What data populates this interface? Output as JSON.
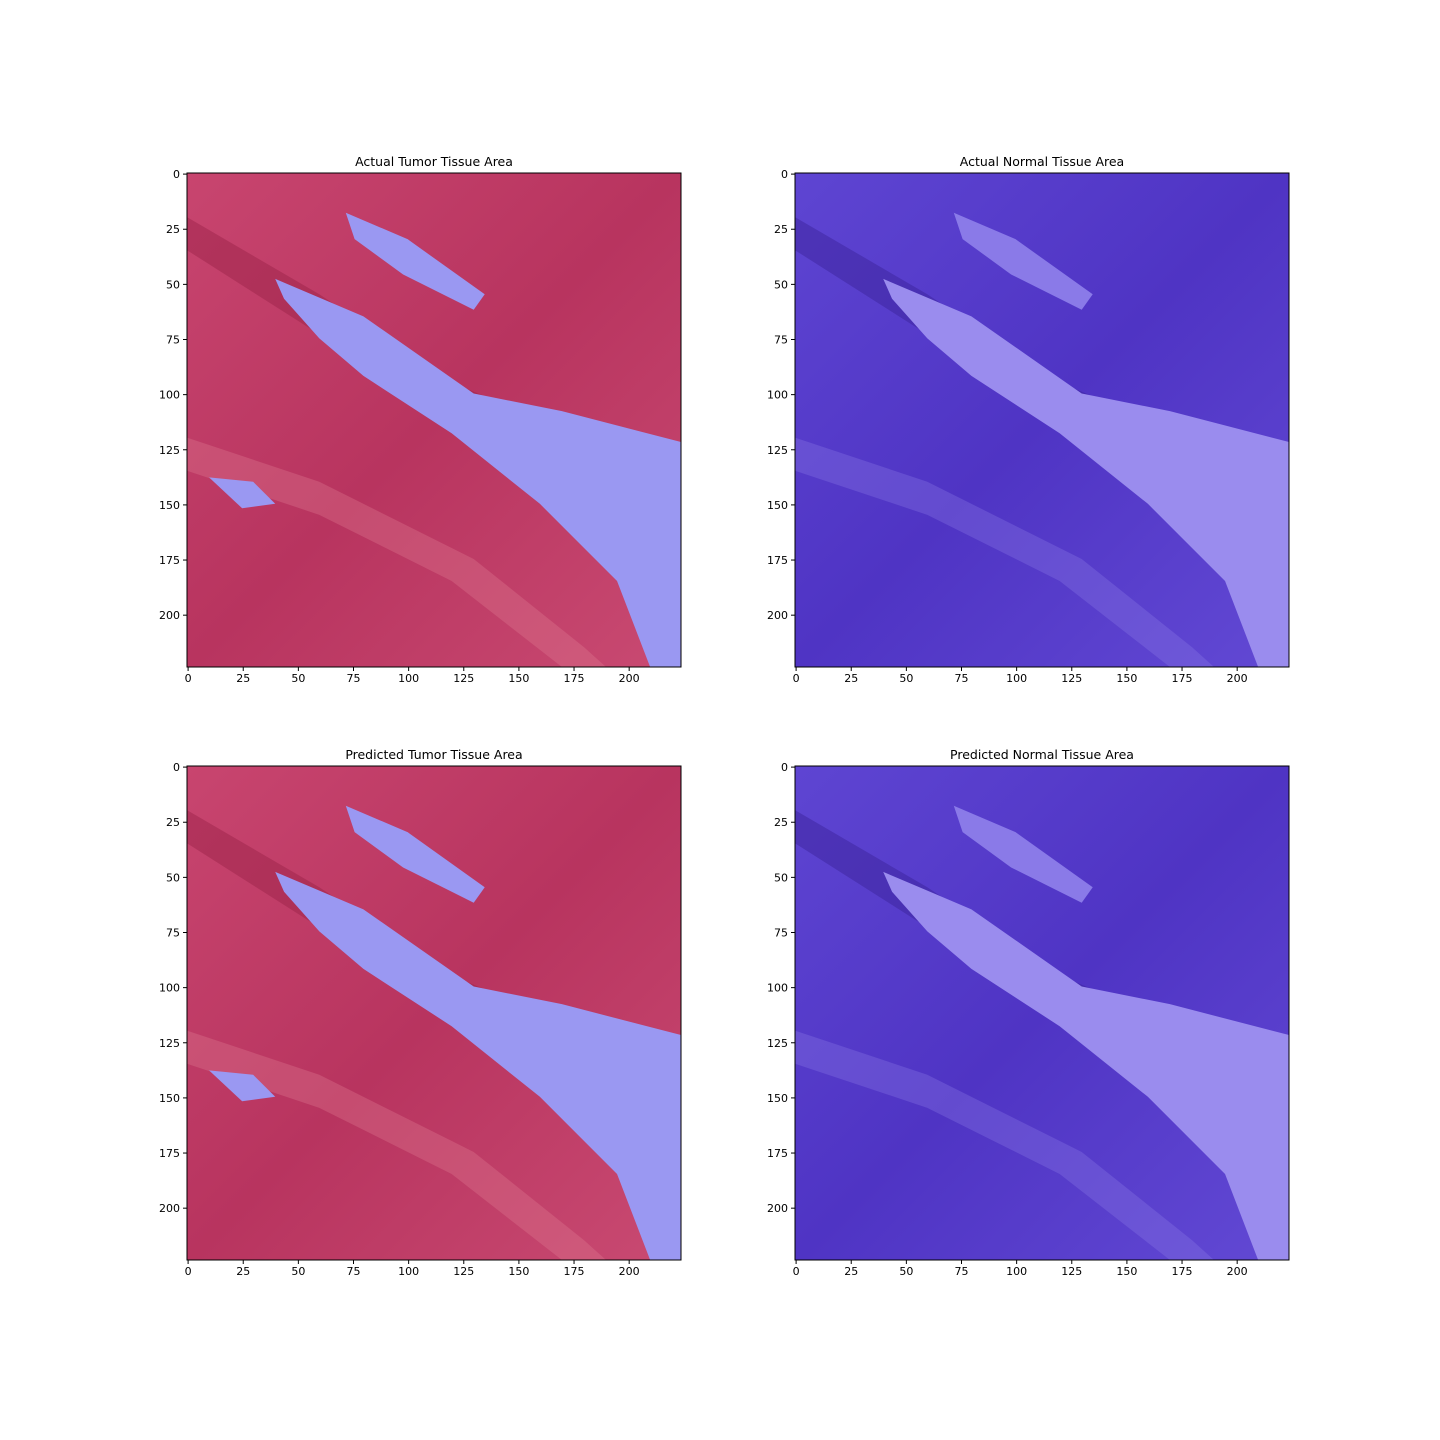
{
  "chart_data": [
    {
      "type": "image",
      "title": "Actual Tumor Tissue Area",
      "xlim": [
        -0.5,
        223.5
      ],
      "ylim": [
        223.5,
        -0.5
      ],
      "xticks": [
        0,
        25,
        50,
        75,
        100,
        125,
        150,
        175,
        200
      ],
      "yticks": [
        0,
        25,
        50,
        75,
        100,
        125,
        150,
        175,
        200
      ]
    },
    {
      "type": "image",
      "title": "Actual Normal Tissue Area",
      "xlim": [
        -0.5,
        223.5
      ],
      "ylim": [
        223.5,
        -0.5
      ],
      "xticks": [
        0,
        25,
        50,
        75,
        100,
        125,
        150,
        175,
        200
      ],
      "yticks": [
        0,
        25,
        50,
        75,
        100,
        125,
        150,
        175,
        200
      ]
    },
    {
      "type": "image",
      "title": "Predicted Tumor Tissue Area",
      "xlim": [
        -0.5,
        223.5
      ],
      "ylim": [
        223.5,
        -0.5
      ],
      "xticks": [
        0,
        25,
        50,
        75,
        100,
        125,
        150,
        175,
        200
      ],
      "yticks": [
        0,
        25,
        50,
        75,
        100,
        125,
        150,
        175,
        200
      ]
    },
    {
      "type": "image",
      "title": "Predicted Normal Tissue Area",
      "xlim": [
        -0.5,
        223.5
      ],
      "ylim": [
        223.5,
        -0.5
      ],
      "xticks": [
        0,
        25,
        50,
        75,
        100,
        125,
        150,
        175,
        200
      ],
      "yticks": [
        0,
        25,
        50,
        75,
        100,
        125,
        150,
        175,
        200
      ]
    }
  ]
}
